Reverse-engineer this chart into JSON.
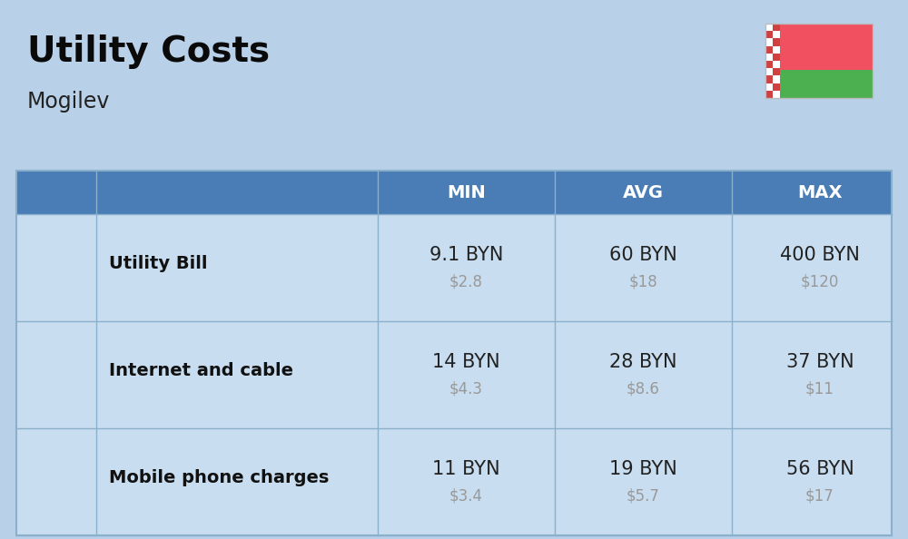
{
  "title": "Utility Costs",
  "subtitle": "Mogilev",
  "background_color": "#b8d0e8",
  "header_bg_color": "#4a7db5",
  "header_text_color": "#ffffff",
  "row_bg_color": "#c8ddef",
  "col_headers": [
    "MIN",
    "AVG",
    "MAX"
  ],
  "rows": [
    {
      "label": "Utility Bill",
      "min_byn": "9.1 BYN",
      "min_usd": "$2.8",
      "avg_byn": "60 BYN",
      "avg_usd": "$18",
      "max_byn": "400 BYN",
      "max_usd": "$120"
    },
    {
      "label": "Internet and cable",
      "min_byn": "14 BYN",
      "min_usd": "$4.3",
      "avg_byn": "28 BYN",
      "avg_usd": "$8.6",
      "max_byn": "37 BYN",
      "max_usd": "$11"
    },
    {
      "label": "Mobile phone charges",
      "min_byn": "11 BYN",
      "min_usd": "$3.4",
      "avg_byn": "19 BYN",
      "avg_usd": "$5.7",
      "max_byn": "56 BYN",
      "max_usd": "$17"
    }
  ],
  "flag_red": "#f05060",
  "flag_green": "#4caf50",
  "flag_ornament_red": "#d04040",
  "cell_divider_color": "#8ab0cc",
  "label_text_color": "#111111",
  "usd_text_color": "#999999",
  "byn_text_color": "#222222",
  "title_color": "#0a0a0a",
  "subtitle_color": "#222222"
}
